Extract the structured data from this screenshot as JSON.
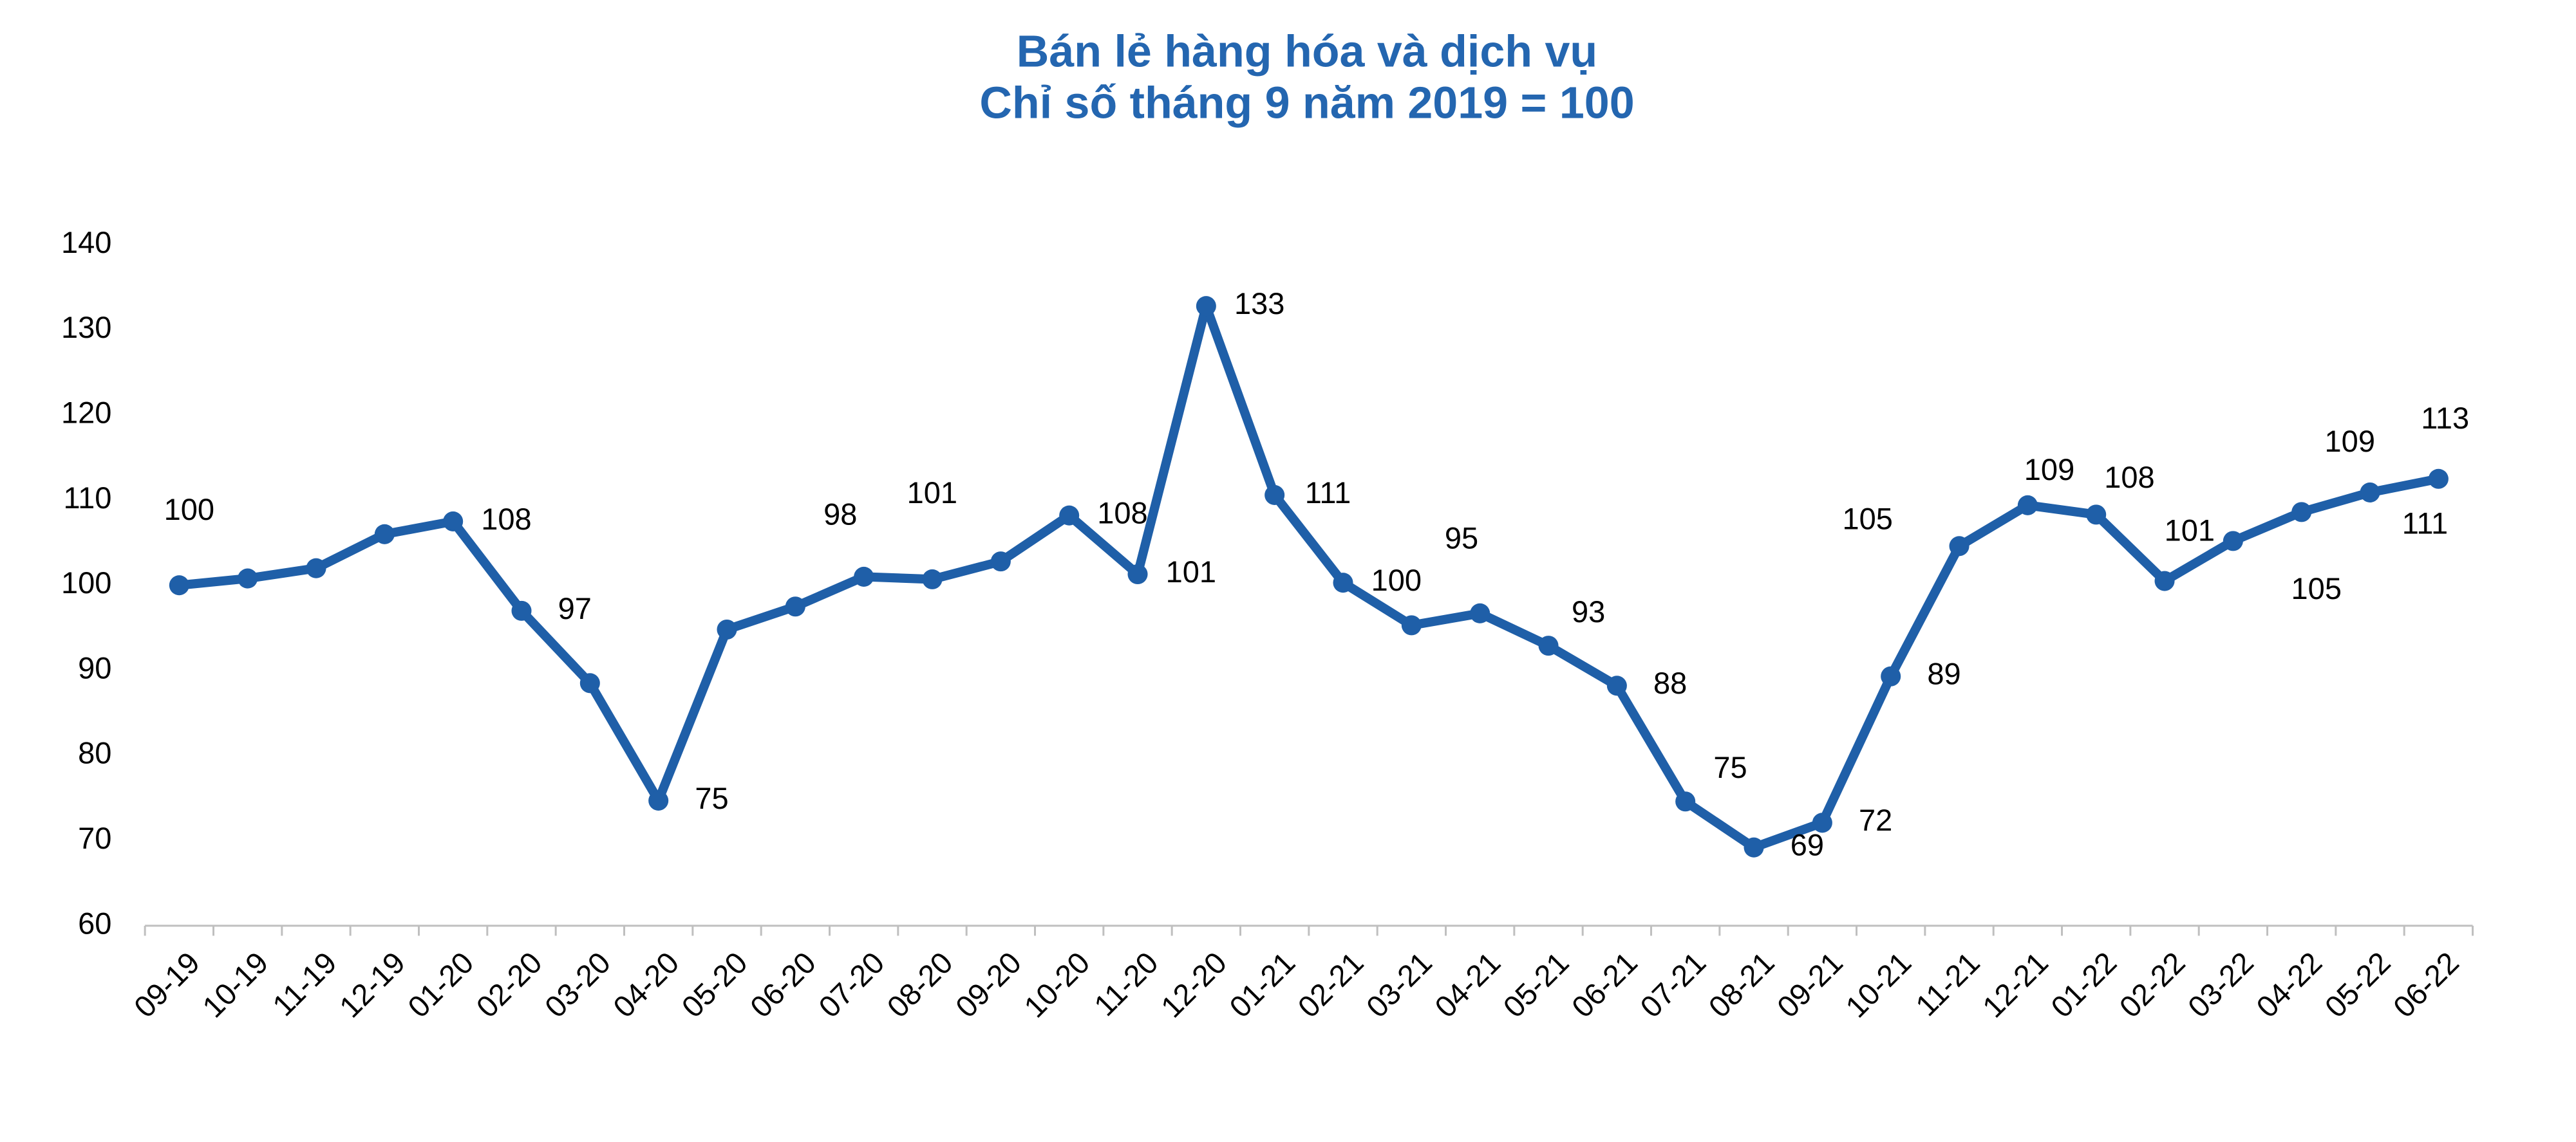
{
  "chart_data": {
    "type": "line",
    "title": "Bán lẻ hàng hóa và dịch vụ",
    "subtitle": "Chỉ số tháng 9 năm 2019 = 100",
    "categories": [
      "09-19",
      "10-19",
      "11-19",
      "12-19",
      "01-20",
      "02-20",
      "03-20",
      "04-20",
      "05-20",
      "06-20",
      "07-20",
      "08-20",
      "09-20",
      "10-20",
      "11-20",
      "12-20",
      "01-21",
      "02-21",
      "03-21",
      "04-21",
      "05-21",
      "06-21",
      "07-21",
      "08-21",
      "09-21",
      "10-21",
      "11-21",
      "12-21",
      "01-22",
      "02-22",
      "03-22",
      "04-22",
      "05-22",
      "06-22"
    ],
    "values": [
      100,
      100.8,
      102,
      106,
      107.5,
      97,
      88.5,
      74.7,
      94.8,
      97.5,
      101,
      100.7,
      102.8,
      108.2,
      101.3,
      132.8,
      110.6,
      100.3,
      95.3,
      96.7,
      92.9,
      88.2,
      74.6,
      69.2,
      72.1,
      89.3,
      104.6,
      109.4,
      108.3,
      100.5,
      105.2,
      108.6,
      110.9,
      112.5
    ],
    "value_labels": [
      "100",
      null,
      null,
      null,
      "108",
      "97",
      null,
      "75",
      null,
      "98",
      "101",
      null,
      null,
      "108",
      "101",
      "133",
      "111",
      "100",
      "95",
      null,
      "93",
      "88",
      "75",
      "69",
      "72",
      "89",
      "105",
      "109",
      "108",
      "101",
      "105",
      "109",
      "111",
      "113"
    ],
    "color": "#1f5fa8",
    "ylim": [
      60,
      140
    ],
    "yticks": [
      60,
      70,
      80,
      90,
      100,
      110,
      120,
      130,
      140
    ],
    "grid": false
  }
}
